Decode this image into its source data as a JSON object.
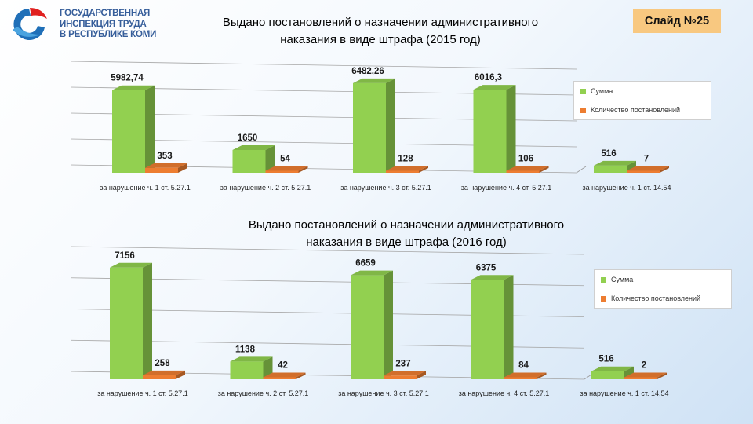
{
  "header": {
    "logo_lines": [
      "ГОСУДАРСТВЕННАЯ",
      "ИНСПЕКЦИЯ ТРУДА",
      "В РЕСПУБЛИКЕ КОМИ"
    ],
    "slide_badge": "Слайд №25"
  },
  "colors": {
    "series1": "#92d050",
    "series2": "#ed7d31",
    "logo_blue": "#1f6fb8",
    "logo_red": "#e02020"
  },
  "chart_data": [
    {
      "type": "bar",
      "title_lines": [
        "Выдано постановлений о назначении административного",
        "наказания в виде штрафа (2015 год)"
      ],
      "categories": [
        "за нарушение ч. 1 ст. 5.27.1",
        "за нарушение ч. 2 ст. 5.27.1",
        "за нарушение ч. 3 ст. 5.27.1",
        "за нарушение ч. 4 ст. 5.27.1",
        "за нарушение ч. 1 ст. 14.54"
      ],
      "series": [
        {
          "name": "Сумма",
          "values": [
            5982.74,
            1650,
            6482.26,
            6016.3,
            516
          ],
          "labels": [
            "5982,74",
            "1650",
            "6482,26",
            "6016,3",
            "516"
          ]
        },
        {
          "name": "Количество постановлений",
          "values": [
            353,
            54,
            128,
            106,
            7
          ],
          "labels": [
            "353",
            "54",
            "128",
            "106",
            "7"
          ]
        }
      ],
      "ylim": [
        0,
        7500
      ],
      "grid": true,
      "legend": "right"
    },
    {
      "type": "bar",
      "title_lines": [
        "Выдано постановлений о назначении административного",
        "наказания в виде штрафа (2016 год)"
      ],
      "categories": [
        "за нарушение ч. 1 ст. 5.27.1",
        "за нарушение ч. 2 ст. 5.27.1",
        "за нарушение ч. 3 ст. 5.27.1",
        "за нарушение ч. 4 ст. 5.27.1",
        "за нарушение ч. 1 ст. 14.54"
      ],
      "series": [
        {
          "name": "Сумма",
          "values": [
            7156,
            1138,
            6659,
            6375,
            516
          ],
          "labels": [
            "7156",
            "1138",
            "6659",
            "6375",
            "516"
          ]
        },
        {
          "name": "Количество постановлений",
          "values": [
            258,
            42,
            237,
            84,
            2
          ],
          "labels": [
            "258",
            "42",
            "237",
            "84",
            "2"
          ]
        }
      ],
      "ylim": [
        0,
        8000
      ],
      "grid": true,
      "legend": "right"
    }
  ]
}
